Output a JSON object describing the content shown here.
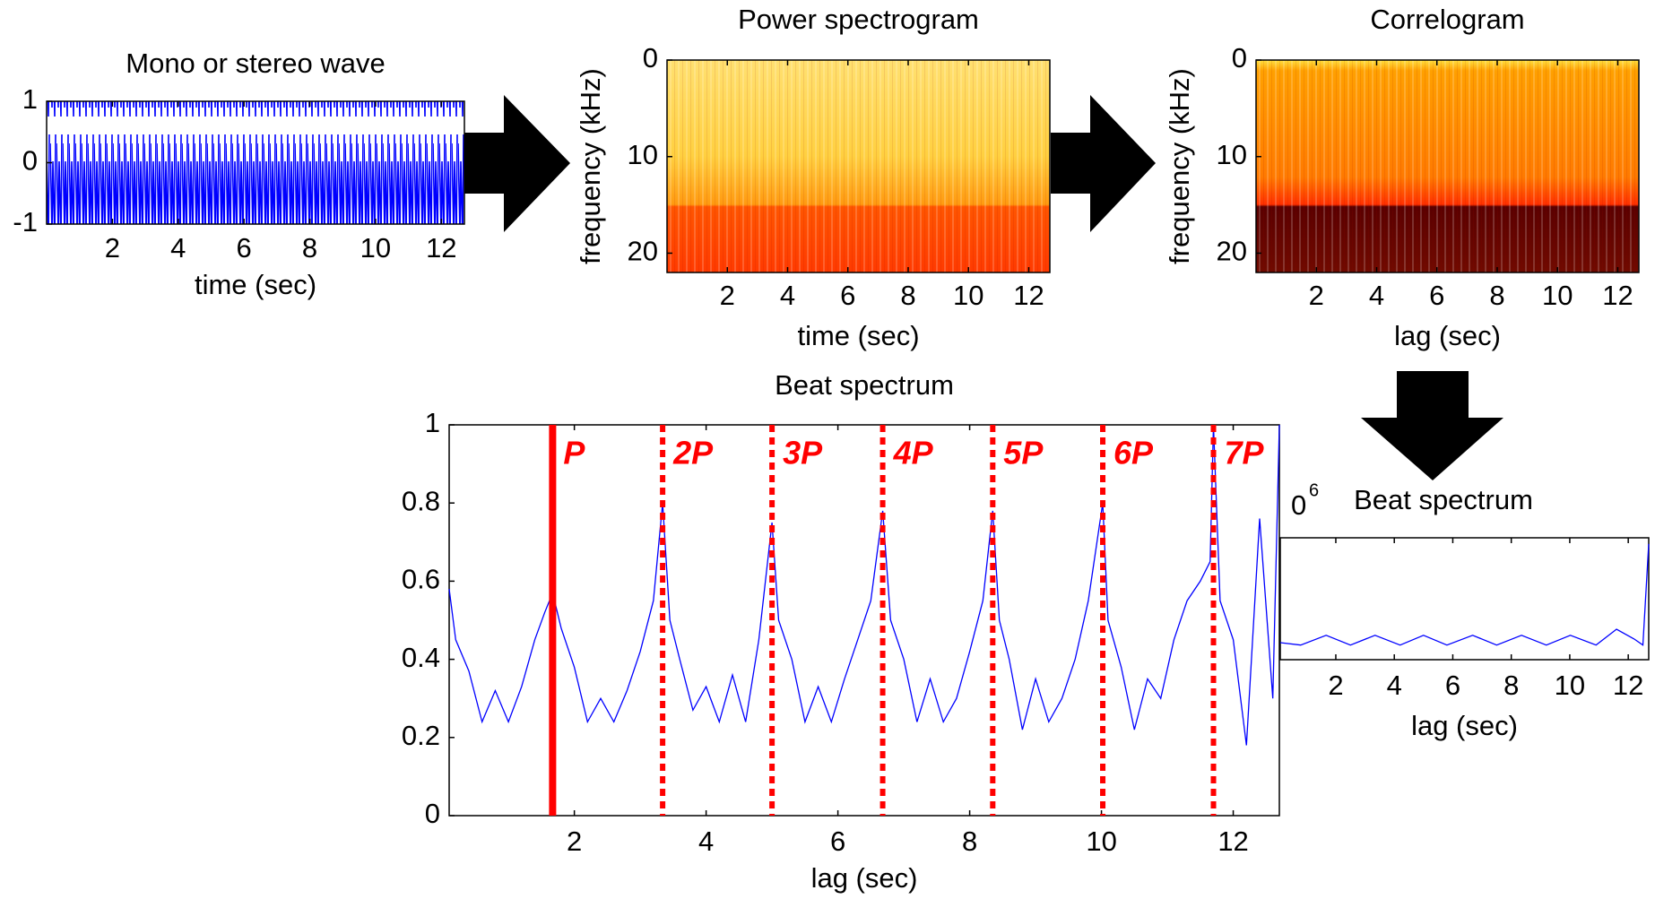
{
  "chart_data": [
    {
      "type": "waveform",
      "title": "Mono or stereo wave",
      "xlabel": "time (sec)",
      "xlim": [
        0,
        12.7
      ],
      "ylim": [
        -1,
        1
      ],
      "xticks": [
        2,
        4,
        6,
        8,
        10,
        12
      ],
      "yticks": [
        -1,
        0,
        1
      ],
      "color": "#0000ff"
    },
    {
      "type": "heatmap",
      "title": "Power spectrogram",
      "xlabel": "time (sec)",
      "ylabel": "frequency (kHz)",
      "xlim": [
        0,
        12.7
      ],
      "ylim": [
        0,
        22
      ],
      "y_reversed": true,
      "xticks": [
        2,
        4,
        6,
        8,
        10,
        12
      ],
      "yticks": [
        0,
        10,
        20
      ],
      "colormap": "spectrogram"
    },
    {
      "type": "heatmap",
      "title": "Correlogram",
      "xlabel": "lag (sec)",
      "ylabel": "frequency (kHz)",
      "xlim": [
        0,
        12.7
      ],
      "ylim": [
        0,
        22
      ],
      "y_reversed": true,
      "xticks": [
        2,
        4,
        6,
        8,
        10,
        12
      ],
      "yticks": [
        0,
        10,
        20
      ],
      "colormap": "correlogram"
    },
    {
      "type": "line",
      "title": "Beat spectrum",
      "xlabel": "lag (sec)",
      "xlim": [
        0.1,
        12.7
      ],
      "ylim": [
        0,
        1
      ],
      "xticks": [
        2,
        4,
        6,
        8,
        10,
        12
      ],
      "yticks": [
        0,
        0.2,
        0.4,
        0.6,
        0.8,
        1
      ],
      "color": "#0000ff",
      "x": [
        0.1,
        0.2,
        0.4,
        0.6,
        0.8,
        1.0,
        1.2,
        1.4,
        1.55,
        1.67,
        1.8,
        2.0,
        2.2,
        2.4,
        2.6,
        2.8,
        3.0,
        3.2,
        3.34,
        3.45,
        3.6,
        3.8,
        4.0,
        4.2,
        4.4,
        4.6,
        4.8,
        5.0,
        5.1,
        5.3,
        5.5,
        5.7,
        5.9,
        6.1,
        6.3,
        6.5,
        6.68,
        6.8,
        7.0,
        7.2,
        7.4,
        7.6,
        7.8,
        8.0,
        8.2,
        8.35,
        8.45,
        8.6,
        8.8,
        9.0,
        9.2,
        9.4,
        9.6,
        9.8,
        10.02,
        10.1,
        10.3,
        10.5,
        10.7,
        10.9,
        11.1,
        11.3,
        11.5,
        11.65,
        11.7,
        11.8,
        12.0,
        12.2,
        12.4,
        12.6,
        12.7
      ],
      "values": [
        0.58,
        0.45,
        0.37,
        0.24,
        0.32,
        0.24,
        0.33,
        0.45,
        0.52,
        0.57,
        0.48,
        0.38,
        0.24,
        0.3,
        0.24,
        0.32,
        0.42,
        0.55,
        0.8,
        0.5,
        0.4,
        0.27,
        0.33,
        0.24,
        0.36,
        0.24,
        0.45,
        0.75,
        0.5,
        0.4,
        0.24,
        0.33,
        0.24,
        0.35,
        0.45,
        0.55,
        0.78,
        0.5,
        0.4,
        0.24,
        0.35,
        0.24,
        0.3,
        0.42,
        0.55,
        0.78,
        0.5,
        0.4,
        0.22,
        0.35,
        0.24,
        0.3,
        0.4,
        0.55,
        0.8,
        0.5,
        0.38,
        0.22,
        0.35,
        0.3,
        0.45,
        0.55,
        0.6,
        0.65,
        1,
        0.55,
        0.45,
        0.18,
        0.76,
        0.3,
        1
      ],
      "marker_color": "#ff0000",
      "markers": [
        {
          "x": 1.67,
          "label": "P",
          "style": "solid"
        },
        {
          "x": 3.34,
          "label": "2P",
          "style": "dotted"
        },
        {
          "x": 5.0,
          "label": "3P",
          "style": "dotted"
        },
        {
          "x": 6.68,
          "label": "4P",
          "style": "dotted"
        },
        {
          "x": 8.35,
          "label": "5P",
          "style": "dotted"
        },
        {
          "x": 10.02,
          "label": "6P",
          "style": "dotted"
        },
        {
          "x": 11.7,
          "label": "7P",
          "style": "dotted"
        }
      ]
    },
    {
      "type": "line",
      "title": "Beat spectrum",
      "xlabel": "lag (sec)",
      "exponent_base": "0",
      "exponent": "6",
      "xlim": [
        0.1,
        12.7
      ],
      "ylim": [
        0,
        1
      ],
      "xticks": [
        2,
        4,
        6,
        8,
        10,
        12
      ],
      "color": "#0000ff",
      "x": [
        0.1,
        0.8,
        1.67,
        2.5,
        3.34,
        4.2,
        5.0,
        5.8,
        6.68,
        7.5,
        8.35,
        9.2,
        10.02,
        10.9,
        11.6,
        12.2,
        12.5,
        12.7
      ],
      "values": [
        0.14,
        0.12,
        0.2,
        0.12,
        0.2,
        0.12,
        0.2,
        0.12,
        0.2,
        0.12,
        0.2,
        0.12,
        0.2,
        0.12,
        0.25,
        0.17,
        0.12,
        0.95
      ]
    }
  ]
}
